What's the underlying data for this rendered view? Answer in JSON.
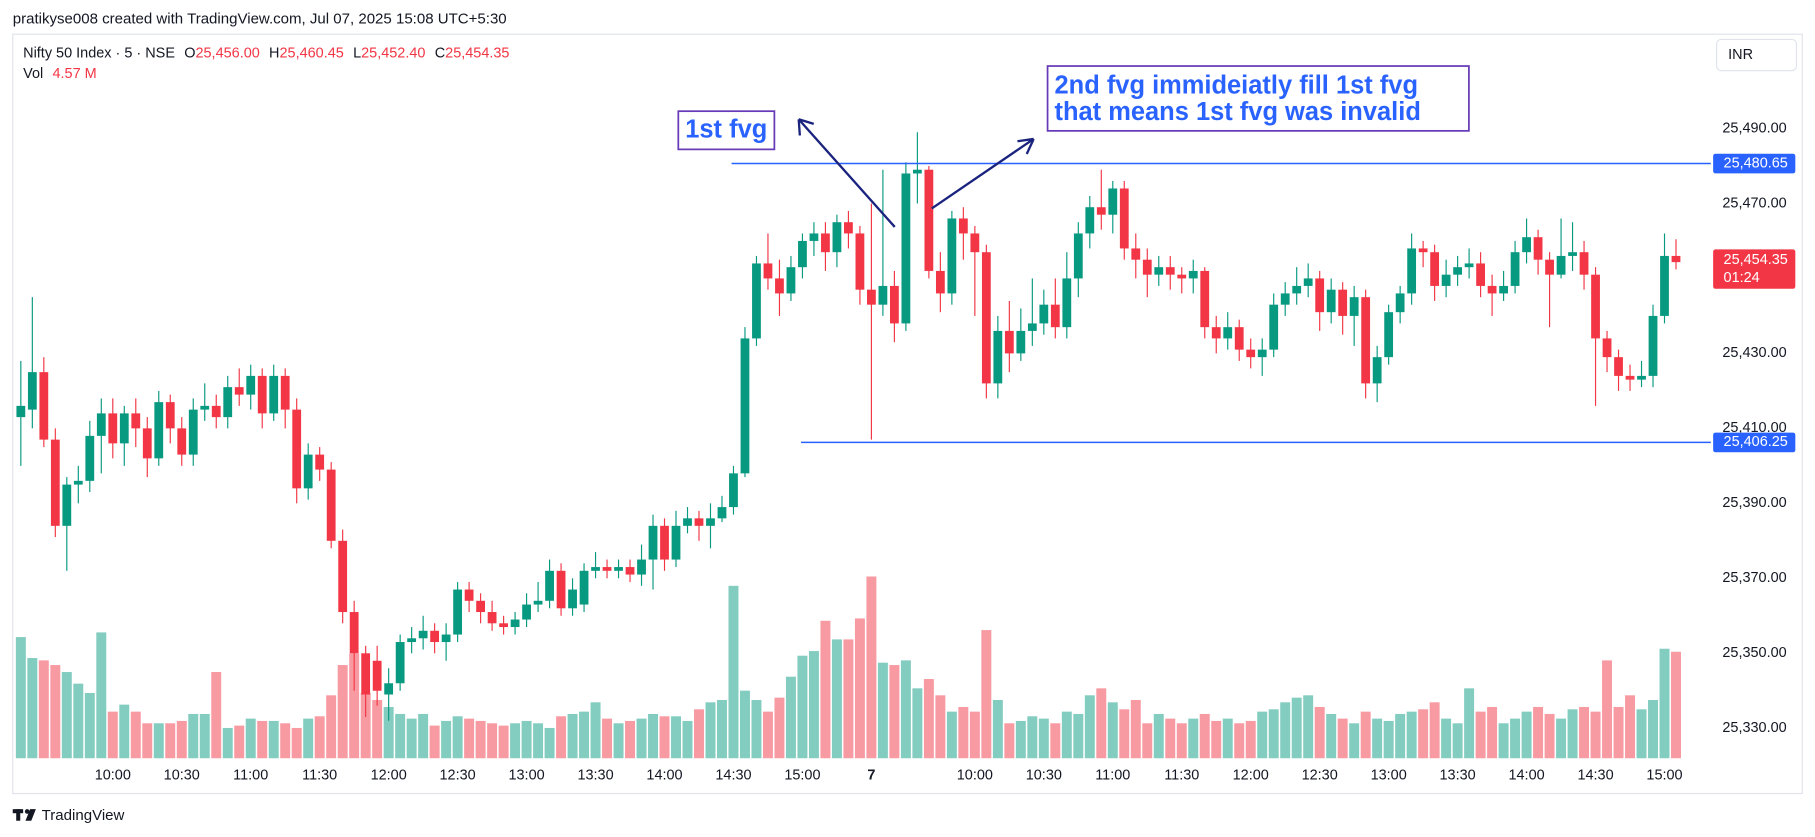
{
  "credit": "pratikyse008 created with TradingView.com, Jul 07, 2025 15:08 UTC+5:30",
  "currency": "INR",
  "brand": "TradingView",
  "chart_data": {
    "type": "candlestick",
    "legend": {
      "symbol": "Nifty 50 Index · 5 · NSE",
      "ohlc": [
        {
          "key": "O",
          "value": "25,456.00"
        },
        {
          "key": "H",
          "value": "25,460.45"
        },
        {
          "key": "L",
          "value": "25,452.40"
        },
        {
          "key": "C",
          "value": "25,454.35"
        }
      ],
      "volume_name": "Vol",
      "volume_value": "4.57 M"
    },
    "up_color": "#089981",
    "down_color": "#f23645",
    "line_color": "#2962ff",
    "grid": false,
    "ylim": [
      25322,
      25515
    ],
    "yticks": [
      {
        "value": 25330,
        "label": "25,330.00"
      },
      {
        "value": 25350,
        "label": "25,350.00"
      },
      {
        "value": 25370,
        "label": "25,370.00"
      },
      {
        "value": 25390,
        "label": "25,390.00"
      },
      {
        "value": 25410,
        "label": "25,410.00"
      },
      {
        "value": 25430,
        "label": "25,430.00"
      },
      {
        "value": 25450,
        "label": "25,450.00"
      },
      {
        "value": 25470,
        "label": "25,470.00"
      },
      {
        "value": 25490,
        "label": "25,490.00"
      }
    ],
    "hlines": [
      {
        "value": 25480.65,
        "label": "25,480.65"
      },
      {
        "value": 25406.25,
        "label": "25,406.25"
      }
    ],
    "last_price_label": "25,454.35",
    "countdown": "01:24",
    "annotations": [
      "1st fvg",
      "2nd fvg immideiatly fill 1st fvg",
      "that means 1st fvg was invalid"
    ],
    "categories": [
      null,
      null,
      null,
      null,
      null,
      null,
      null,
      null,
      "10:00",
      null,
      null,
      null,
      null,
      null,
      "10:30",
      null,
      null,
      null,
      null,
      null,
      "11:00",
      null,
      null,
      null,
      null,
      null,
      "11:30",
      null,
      null,
      null,
      null,
      null,
      "12:00",
      null,
      null,
      null,
      null,
      null,
      "12:30",
      null,
      null,
      null,
      null,
      null,
      "13:00",
      null,
      null,
      null,
      null,
      null,
      "13:30",
      null,
      null,
      null,
      null,
      null,
      "14:00",
      null,
      null,
      null,
      null,
      null,
      "14:30",
      null,
      null,
      null,
      null,
      null,
      "15:00",
      null,
      null,
      null,
      null,
      null,
      "7",
      null,
      null,
      null,
      null,
      null,
      null,
      null,
      null,
      "10:00",
      null,
      null,
      null,
      null,
      null,
      "10:30",
      null,
      null,
      null,
      null,
      null,
      "11:00",
      null,
      null,
      null,
      null,
      null,
      "11:30",
      null,
      null,
      null,
      null,
      null,
      "12:00",
      null,
      null,
      null,
      null,
      null,
      "12:30",
      null,
      null,
      null,
      null,
      null,
      "13:00",
      null,
      null,
      null,
      null,
      null,
      "13:30",
      null,
      null,
      null,
      null,
      null,
      "14:00",
      null,
      null,
      null,
      null,
      null,
      "14:30",
      null,
      null,
      null,
      null,
      null,
      "15:00",
      null
    ],
    "open": [
      25413,
      25415,
      25425,
      25407,
      25384,
      25395,
      25396,
      25408,
      25414,
      25406,
      25414,
      25410,
      25402,
      25417,
      25410,
      25403,
      25415,
      25416,
      25413,
      25421,
      25419,
      25424,
      25414,
      25424,
      25415,
      25394,
      25403,
      25399,
      25380,
      25361,
      25350,
      25348,
      25339,
      25342,
      25353,
      25354,
      25356,
      25353,
      25355,
      25367,
      25364,
      25361,
      25358,
      25357,
      25359,
      25363,
      25364,
      25372,
      25362,
      25363,
      25372,
      25373,
      25372,
      25373,
      25371,
      25375,
      25384,
      25375,
      25384,
      25386,
      25384,
      25386,
      25389,
      25398,
      25434,
      25454,
      25450,
      25446,
      25453,
      25460,
      25462,
      25457,
      25465,
      25462,
      25447,
      25443,
      25448,
      25438,
      25478,
      25479,
      25452,
      25446,
      25466,
      25462,
      25457,
      25422,
      25436,
      25430,
      25436,
      25438,
      25443,
      25437,
      25450,
      25462,
      25469,
      25467,
      25474,
      25458,
      25455,
      25451,
      25453,
      25451,
      25450,
      25452,
      25437,
      25434,
      25437,
      25431,
      25429,
      25431,
      25443,
      25446,
      25448,
      25450,
      25441,
      25447,
      25440,
      25445,
      25422,
      25429,
      25441,
      25446,
      25458,
      25457,
      25448,
      25451,
      25453,
      25454,
      25448,
      25446,
      25448,
      25457,
      25461,
      25455,
      25451,
      25456,
      25457,
      25451,
      25434,
      25429,
      25424,
      25423,
      25424,
      25440,
      25456
    ],
    "high": [
      25428,
      25445,
      25429,
      25410,
      25397,
      25400,
      25412,
      25418,
      25418,
      25416,
      25418,
      25413,
      25420,
      25419,
      25413,
      25418,
      25422,
      25419,
      25424,
      25426,
      25427,
      25426,
      25427,
      25426,
      25418,
      25406,
      25405,
      25401,
      25383,
      25364,
      25352,
      25352,
      25346,
      25355,
      25357,
      25360,
      25358,
      25358,
      25369,
      25369,
      25366,
      25364,
      25360,
      25361,
      25366,
      25369,
      25375,
      25374,
      25370,
      25374,
      25377,
      25375,
      25375,
      25375,
      25379,
      25387,
      25386,
      25388,
      25389,
      25388,
      25390,
      25392,
      25400,
      25437,
      25456,
      25462,
      25455,
      25456,
      25462,
      25465,
      25465,
      25467,
      25468,
      25464,
      25470,
      25479,
      25452,
      25481,
      25489,
      25480,
      25457,
      25468,
      25469,
      25464,
      25459,
      25440,
      25444,
      25442,
      25450,
      25447,
      25450,
      25457,
      25465,
      25472,
      25479,
      25476,
      25476,
      25462,
      25458,
      25456,
      25456,
      25453,
      25455,
      25453,
      25440,
      25441,
      25439,
      25434,
      25434,
      25446,
      25449,
      25453,
      25454,
      25452,
      25450,
      25449,
      25448,
      25447,
      25432,
      25443,
      25448,
      25462,
      25460,
      25459,
      25455,
      25456,
      25458,
      25457,
      25451,
      25452,
      25460,
      25466,
      25463,
      25457,
      25466,
      25465,
      25460,
      25453,
      25436,
      25431,
      25427,
      25428,
      25443,
      25462,
      25460.45
    ],
    "low": [
      25400,
      25410,
      25405,
      25381,
      25372,
      25390,
      25393,
      25398,
      25402,
      25400,
      25405,
      25397,
      25400,
      25406,
      25400,
      25400,
      25412,
      25410,
      25410,
      25416,
      25415,
      25410,
      25412,
      25410,
      25390,
      25391,
      25396,
      25378,
      25358,
      25340,
      25333,
      25336,
      25332,
      25340,
      25350,
      25351,
      25350,
      25348,
      25353,
      25361,
      25358,
      25356,
      25355,
      25355,
      25357,
      25361,
      25362,
      25360,
      25360,
      25361,
      25370,
      25370,
      25370,
      25369,
      25368,
      25367,
      25372,
      25373,
      25382,
      25380,
      25378,
      25385,
      25387,
      25397,
      25432,
      25447,
      25440,
      25444,
      25450,
      25456,
      25452,
      25453,
      25458,
      25443,
      25407,
      25440,
      25433,
      25436,
      25470,
      25450,
      25441,
      25443,
      25455,
      25440,
      25418,
      25418,
      25425,
      25428,
      25432,
      25435,
      25434,
      25434,
      25445,
      25458,
      25463,
      25462,
      25455,
      25450,
      25445,
      25448,
      25447,
      25446,
      25446,
      25434,
      25430,
      25431,
      25428,
      25426,
      25424,
      25429,
      25440,
      25443,
      25445,
      25436,
      25438,
      25435,
      25432,
      25418,
      25417,
      25427,
      25438,
      25443,
      25453,
      25444,
      25445,
      25448,
      25450,
      25445,
      25440,
      25444,
      25446,
      25454,
      25451,
      25437,
      25450,
      25452,
      25447,
      25416,
      25425,
      25420,
      25420,
      25421,
      25421,
      25438,
      25452.4
    ],
    "close": [
      25416,
      25425,
      25407,
      25384,
      25395,
      25396,
      25408,
      25414,
      25406,
      25414,
      25410,
      25402,
      25417,
      25410,
      25403,
      25415,
      25416,
      25413,
      25421,
      25419,
      25424,
      25414,
      25424,
      25415,
      25394,
      25403,
      25399,
      25380,
      25361,
      25350,
      25339,
      25340,
      25342,
      25353,
      25354,
      25356,
      25353,
      25355,
      25367,
      25364,
      25361,
      25358,
      25357,
      25359,
      25363,
      25364,
      25372,
      25362,
      25367,
      25372,
      25373,
      25372,
      25373,
      25371,
      25375,
      25384,
      25375,
      25384,
      25386,
      25384,
      25386,
      25389,
      25398,
      25434,
      25454,
      25450,
      25446,
      25453,
      25460,
      25462,
      25457,
      25465,
      25462,
      25447,
      25443,
      25448,
      25438,
      25478,
      25479,
      25452,
      25446,
      25466,
      25462,
      25457,
      25422,
      25436,
      25430,
      25436,
      25438,
      25443,
      25437,
      25450,
      25462,
      25469,
      25467,
      25474,
      25458,
      25455,
      25451,
      25453,
      25451,
      25450,
      25452,
      25437,
      25434,
      25437,
      25431,
      25429,
      25431,
      25443,
      25446,
      25448,
      25450,
      25441,
      25447,
      25440,
      25445,
      25422,
      25429,
      25441,
      25446,
      25458,
      25457,
      25448,
      25451,
      25453,
      25454,
      25448,
      25446,
      25448,
      25457,
      25461,
      25455,
      25451,
      25456,
      25457,
      25451,
      25434,
      25429,
      25424,
      25423,
      25424,
      25440,
      25456,
      25454.35
    ],
    "volume": [
      5.2,
      4.3,
      4.2,
      4.0,
      3.7,
      3.2,
      2.8,
      5.4,
      2.0,
      2.3,
      2.0,
      1.5,
      1.5,
      1.5,
      1.6,
      1.9,
      1.9,
      3.7,
      1.3,
      1.4,
      1.7,
      1.6,
      1.6,
      1.5,
      1.3,
      1.7,
      1.8,
      2.7,
      4.0,
      4.5,
      2.8,
      2.5,
      2.2,
      1.9,
      1.7,
      1.9,
      1.4,
      1.6,
      1.8,
      1.7,
      1.6,
      1.5,
      1.4,
      1.5,
      1.6,
      1.5,
      1.3,
      1.8,
      1.9,
      2.0,
      2.4,
      1.7,
      1.5,
      1.6,
      1.7,
      1.9,
      1.8,
      1.8,
      1.6,
      2.1,
      2.4,
      2.5,
      7.4,
      2.9,
      2.5,
      2.0,
      2.6,
      3.5,
      4.4,
      4.6,
      5.9,
      5.1,
      5.1,
      6.0,
      7.8,
      4.1,
      4.0,
      4.2,
      3.0,
      3.4,
      2.7,
      2.0,
      2.2,
      2.0,
      5.5,
      2.5,
      1.5,
      1.6,
      1.8,
      1.7,
      1.5,
      2.0,
      1.9,
      2.7,
      3.0,
      2.4,
      2.1,
      2.5,
      1.5,
      1.9,
      1.7,
      1.5,
      1.7,
      1.9,
      1.6,
      1.7,
      1.5,
      1.6,
      2.0,
      2.1,
      2.4,
      2.6,
      2.7,
      2.2,
      1.9,
      1.7,
      1.5,
      2.0,
      1.7,
      1.6,
      1.9,
      2.0,
      2.1,
      2.4,
      1.7,
      1.5,
      3.0,
      2.0,
      2.2,
      1.5,
      1.7,
      2.0,
      2.2,
      1.9,
      1.7,
      2.1,
      2.2,
      2.0,
      4.2,
      2.2,
      2.7,
      2.1,
      2.5,
      4.7,
      4.57
    ]
  }
}
